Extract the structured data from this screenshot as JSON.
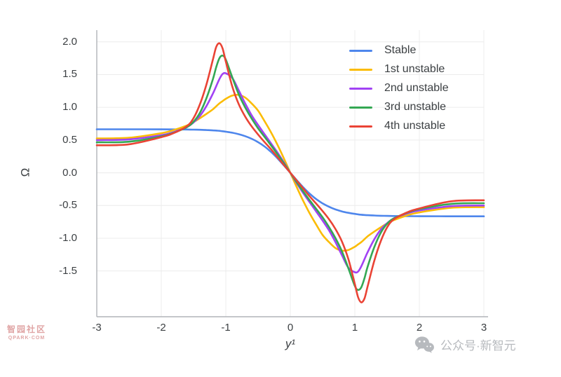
{
  "watermarks": {
    "left_line1": "智园社区",
    "left_line2": "QPARK·COM",
    "right_text": "公众号·新智元",
    "color_left": "#d98f8f",
    "color_right": "#b7babe"
  },
  "chart_data": {
    "type": "line",
    "title": "",
    "xlabel": "y¹",
    "ylabel": "Ω",
    "xlim": [
      -3,
      3
    ],
    "ylim": [
      -2.2,
      2.18
    ],
    "grid": true,
    "grid_color": "#ececec",
    "spine_color": "#b1b4b8",
    "legend_position": "upper right",
    "xticks": [
      -3,
      -2,
      -1,
      0,
      1,
      2,
      3
    ],
    "xtick_labels": [
      "-3",
      "-2",
      "-1",
      "0",
      "1",
      "2",
      "3"
    ],
    "yticks": [
      2.0,
      1.5,
      1.0,
      0.5,
      0.0,
      -0.5,
      -1.0,
      -1.5
    ],
    "ytick_labels": [
      "2.0",
      "1.5",
      "1.0",
      "0.5",
      "0.0",
      "-0.5",
      "-1.0",
      "-1.5"
    ],
    "x": [
      -3,
      -2.5,
      -2,
      -1.8,
      -1.6,
      -1.5,
      -1.4,
      -1.3,
      -1.2,
      -1.15,
      -1.1,
      -1.05,
      -1,
      -0.9,
      -0.8,
      -0.7,
      -0.6,
      -0.5,
      -0.4,
      -0.3,
      -0.2,
      -0.1,
      0,
      0.1,
      0.2,
      0.3,
      0.4,
      0.5,
      0.6,
      0.7,
      0.8,
      0.9,
      1,
      1.05,
      1.1,
      1.15,
      1.2,
      1.3,
      1.4,
      1.5,
      1.6,
      1.8,
      2,
      2.5,
      3
    ],
    "series": [
      {
        "name": "Stable",
        "color": "#4e86ec",
        "values": [
          0.665,
          0.665,
          0.664,
          0.663,
          0.661,
          0.659,
          0.657,
          0.653,
          0.648,
          0.645,
          0.641,
          0.635,
          0.628,
          0.612,
          0.59,
          0.56,
          0.52,
          0.468,
          0.402,
          0.32,
          0.222,
          0.113,
          0,
          -0.113,
          -0.222,
          -0.32,
          -0.402,
          -0.468,
          -0.52,
          -0.56,
          -0.59,
          -0.612,
          -0.628,
          -0.635,
          -0.641,
          -0.645,
          -0.648,
          -0.653,
          -0.657,
          -0.659,
          -0.661,
          -0.663,
          -0.664,
          -0.665,
          -0.665
        ]
      },
      {
        "name": "1st unstable",
        "color": "#fbbc04",
        "values": [
          0.525,
          0.535,
          0.605,
          0.655,
          0.725,
          0.775,
          0.835,
          0.9,
          0.97,
          1.015,
          1.06,
          1.095,
          1.13,
          1.18,
          1.19,
          1.15,
          1.06,
          0.95,
          0.79,
          0.62,
          0.43,
          0.22,
          0,
          -0.22,
          -0.43,
          -0.62,
          -0.79,
          -0.95,
          -1.06,
          -1.15,
          -1.19,
          -1.18,
          -1.13,
          -1.095,
          -1.06,
          -1.015,
          -0.97,
          -0.9,
          -0.835,
          -0.775,
          -0.725,
          -0.655,
          -0.605,
          -0.535,
          -0.525
        ]
      },
      {
        "name": "2nd unstable",
        "color": "#a142f4",
        "values": [
          0.5,
          0.51,
          0.575,
          0.625,
          0.7,
          0.77,
          0.87,
          1.02,
          1.21,
          1.32,
          1.43,
          1.51,
          1.52,
          1.45,
          1.26,
          1.06,
          0.88,
          0.73,
          0.59,
          0.45,
          0.31,
          0.16,
          0,
          -0.16,
          -0.31,
          -0.45,
          -0.59,
          -0.73,
          -0.88,
          -1.06,
          -1.26,
          -1.45,
          -1.52,
          -1.51,
          -1.43,
          -1.32,
          -1.21,
          -1.02,
          -0.87,
          -0.77,
          -0.7,
          -0.625,
          -0.575,
          -0.51,
          -0.5
        ]
      },
      {
        "name": "3rd unstable",
        "color": "#34a853",
        "values": [
          0.465,
          0.475,
          0.555,
          0.615,
          0.7,
          0.78,
          0.92,
          1.14,
          1.43,
          1.61,
          1.75,
          1.79,
          1.73,
          1.46,
          1.2,
          1.0,
          0.83,
          0.68,
          0.55,
          0.42,
          0.285,
          0.145,
          0,
          -0.145,
          -0.285,
          -0.42,
          -0.55,
          -0.68,
          -0.83,
          -1.0,
          -1.2,
          -1.46,
          -1.73,
          -1.79,
          -1.75,
          -1.61,
          -1.43,
          -1.14,
          -0.92,
          -0.78,
          -0.7,
          -0.615,
          -0.555,
          -0.475,
          -0.465
        ]
      },
      {
        "name": "4th unstable",
        "color": "#ea4335",
        "values": [
          0.42,
          0.435,
          0.545,
          0.61,
          0.715,
          0.835,
          1.05,
          1.35,
          1.73,
          1.92,
          1.98,
          1.9,
          1.7,
          1.32,
          1.05,
          0.86,
          0.71,
          0.585,
          0.47,
          0.36,
          0.24,
          0.12,
          0,
          -0.12,
          -0.24,
          -0.36,
          -0.47,
          -0.585,
          -0.71,
          -0.86,
          -1.05,
          -1.32,
          -1.7,
          -1.9,
          -1.98,
          -1.92,
          -1.73,
          -1.35,
          -1.05,
          -0.835,
          -0.715,
          -0.61,
          -0.545,
          -0.435,
          -0.42
        ]
      }
    ]
  }
}
